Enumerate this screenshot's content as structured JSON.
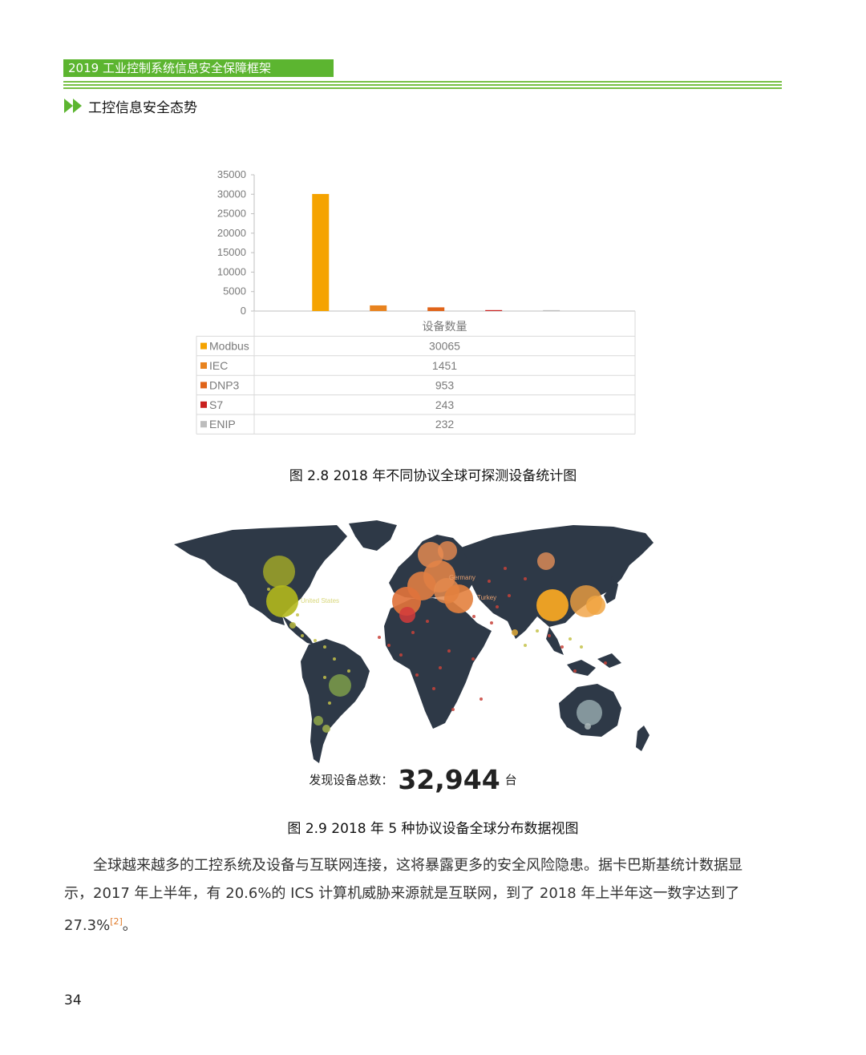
{
  "header": {
    "title": "2019 工业控制系统信息安全保障框架"
  },
  "section": {
    "title": "工控信息安全态势",
    "icon": "double-arrow-icon"
  },
  "chart_data": {
    "type": "bar",
    "categories": [
      "Modbus",
      "IEC",
      "DNP3",
      "S7",
      "ENIP"
    ],
    "series": [
      {
        "name": "设备数量",
        "values": [
          30065,
          1451,
          953,
          243,
          232
        ]
      }
    ],
    "colors": [
      "#f5a300",
      "#e8831f",
      "#e0641a",
      "#c9201f",
      "#bdbdbd"
    ],
    "ylim": [
      0,
      35000
    ],
    "yticks": [
      0,
      5000,
      10000,
      15000,
      20000,
      25000,
      30000,
      35000
    ],
    "table_header": "设备数量",
    "legend": "data-table"
  },
  "figures": {
    "fig1_caption": "图 2.8 2018 年不同协议全球可探测设备统计图",
    "fig2_caption": "图 2.9 2018 年 5 种协议设备全球分布数据视图"
  },
  "map": {
    "labels": {
      "us": "United States",
      "germany": "Germany",
      "turkey": "Turkey"
    },
    "total_label": "发现设备总数：",
    "total_value": "32,944",
    "total_unit": "台"
  },
  "body": {
    "paragraph_main": "全球越来越多的工控系统及设备与互联网连接，这将暴露更多的安全风险隐患。据卡巴斯基统计数据显示，2017 年上半年，有 20.6%的 ICS 计算机威胁来源就是互联网，到了 2018 年上半年这一数字达到了 27.3%",
    "citation": "[2]",
    "paragraph_end": "。"
  },
  "page": {
    "number": "34"
  }
}
